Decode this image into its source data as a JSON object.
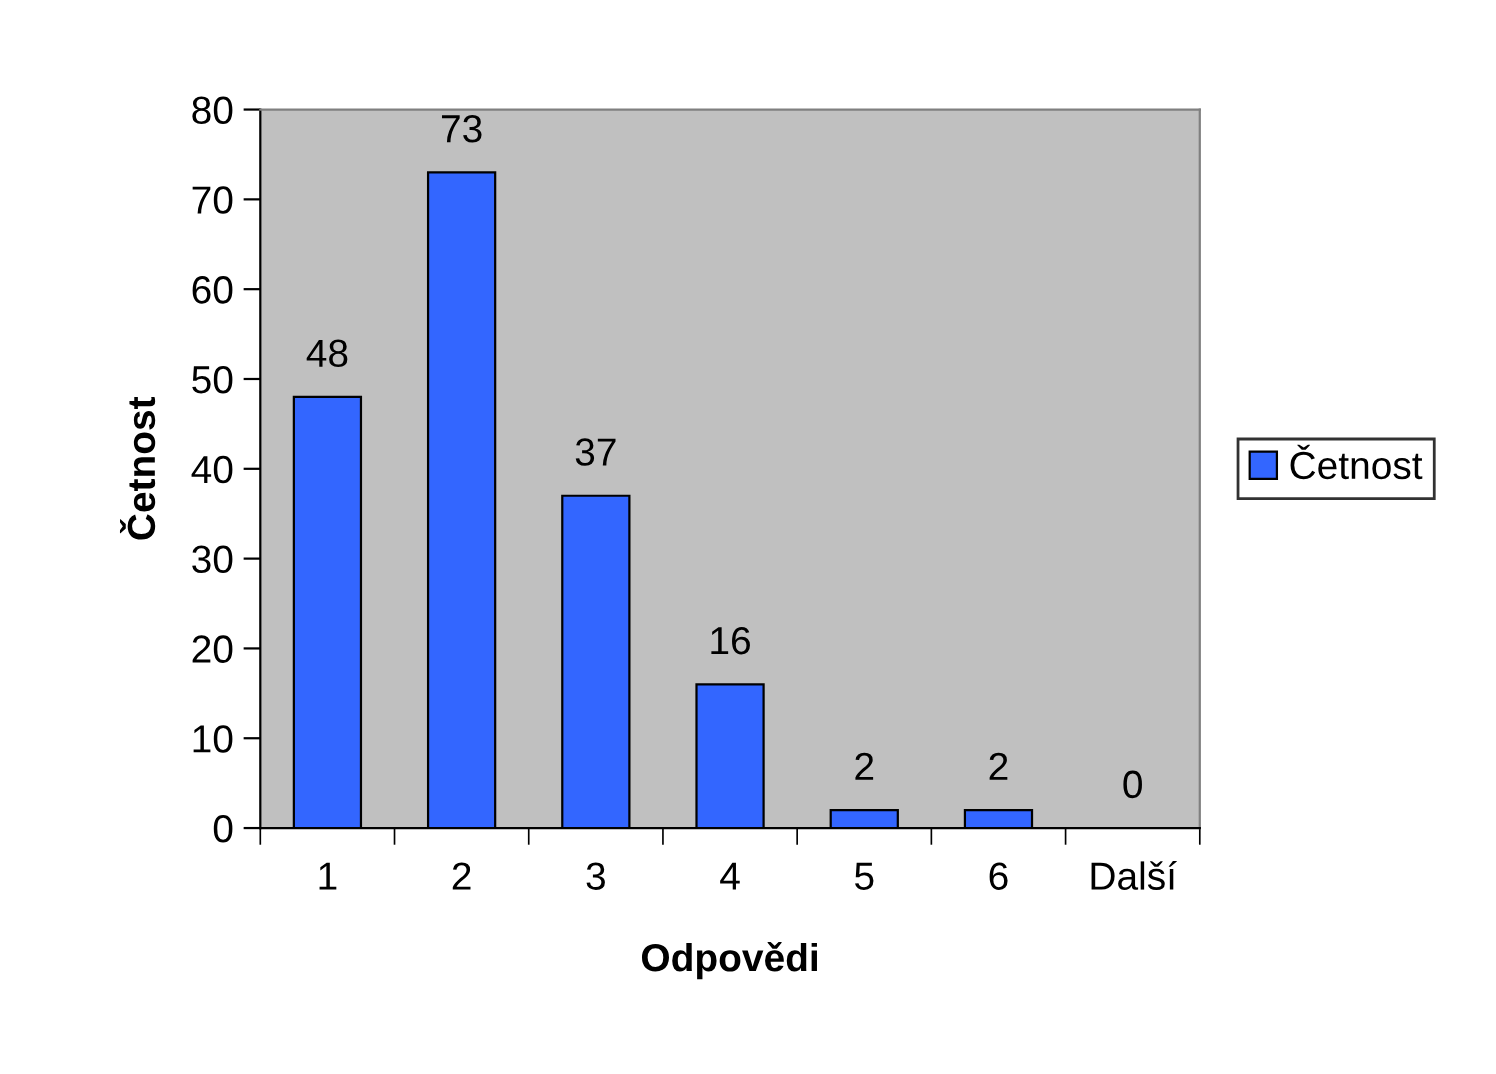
{
  "chart_data": {
    "type": "bar",
    "xlabel": "Odpovědi",
    "ylabel": "Četnost",
    "categories": [
      "1",
      "2",
      "3",
      "4",
      "5",
      "6",
      "Další"
    ],
    "series": [
      {
        "name": "Četnost",
        "color": "#3366ff",
        "values": [
          48,
          73,
          37,
          16,
          2,
          2,
          0
        ]
      }
    ],
    "ylim": [
      0,
      80
    ],
    "yticks": [
      0,
      10,
      20,
      30,
      40,
      50,
      60,
      70,
      80
    ],
    "data_labels": true,
    "grid": false,
    "legend": "right"
  }
}
